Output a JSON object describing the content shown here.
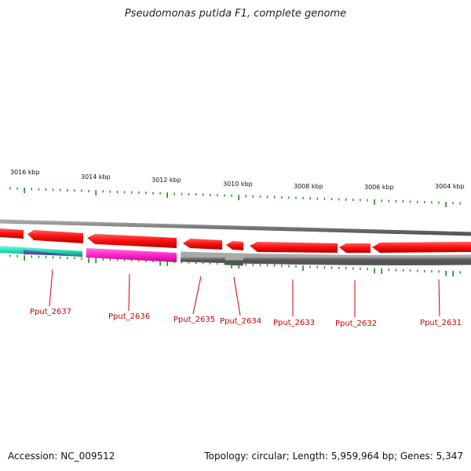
{
  "title": "Pseudomonas putida F1, complete genome",
  "accession": "Accession: NC_009512",
  "topology": "Topology: circular; Length: 5,959,964 bp; Genes: 5,347",
  "ruler_labels": [
    "3016 kbp",
    "3014 kbp",
    "3012 kbp",
    "3010 kbp",
    "3008 kbp",
    "3006 kbp",
    "3004 kbp"
  ],
  "gene_labels": [
    "Pput_2637",
    "Pput_2636",
    "Pput_2635",
    "Pput_2634",
    "Pput_2633",
    "Pput_2632",
    "Pput_2631"
  ],
  "colors": {
    "gene_forward": "#ff1111",
    "gene_dark": "#cc0000",
    "track_gray": "#777777",
    "track_magenta": "#ff33cc",
    "track_teal": "#2ad3b8",
    "tick_green": "#1a8a1a",
    "label_red": "#cc0000"
  }
}
